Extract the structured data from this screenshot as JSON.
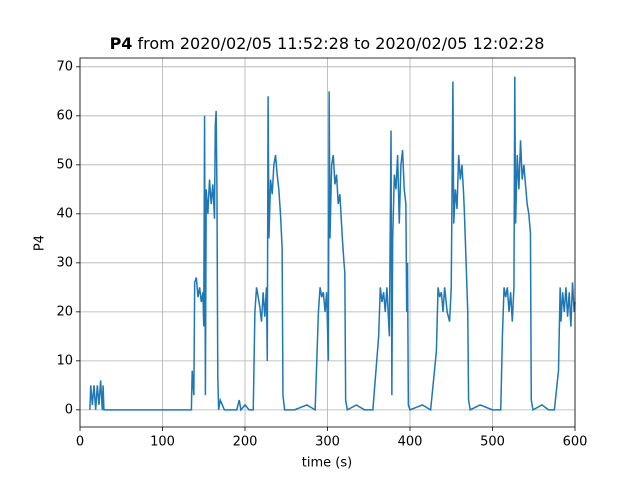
{
  "chart_data": {
    "type": "line",
    "title": {
      "bold": "P4",
      "rest": "from 2020/02/05 11:52:28 to 2020/02/05 12:02:28"
    },
    "x_label": "time (s)",
    "y_label": "P4",
    "xlim": [
      0,
      600
    ],
    "ylim": [
      -3.5,
      71.8
    ],
    "xticks": [
      0,
      100,
      200,
      300,
      400,
      500,
      600
    ],
    "yticks": [
      0,
      10,
      20,
      30,
      40,
      50,
      60,
      70
    ],
    "grid": true,
    "series": [
      {
        "color": "#1f77b4",
        "x": [
          12,
          13,
          15,
          17,
          19,
          21,
          23,
          25,
          27,
          28,
          29,
          135,
          136,
          138,
          139,
          141,
          143,
          145,
          147,
          149,
          150,
          151,
          152,
          153,
          155,
          157,
          159,
          161,
          163,
          164,
          165,
          166,
          167,
          168,
          170,
          175,
          190,
          193,
          195,
          200,
          205,
          210,
          212,
          214,
          216,
          218,
          220,
          222,
          224,
          226,
          227,
          228,
          229,
          231,
          233,
          235,
          237,
          239,
          241,
          243,
          245,
          246,
          248,
          260,
          275,
          285,
          289,
          291,
          293,
          295,
          297,
          299,
          301,
          302,
          303,
          305,
          307,
          309,
          311,
          313,
          315,
          318,
          320,
          321,
          322,
          324,
          335,
          345,
          355,
          362,
          364,
          366,
          368,
          370,
          372,
          375,
          377,
          378,
          379,
          381,
          383,
          385,
          387,
          389,
          391,
          393,
          395,
          396,
          397,
          398,
          400,
          415,
          425,
          432,
          434,
          436,
          438,
          440,
          442,
          445,
          448,
          450,
          452,
          453,
          455,
          457,
          459,
          461,
          463,
          465,
          466,
          468,
          470,
          471,
          473,
          485,
          500,
          510,
          512,
          514,
          516,
          518,
          520,
          522,
          524,
          526,
          527,
          528,
          530,
          532,
          534,
          536,
          538,
          540,
          542,
          544,
          546,
          547,
          549,
          560,
          568,
          575,
          580,
          582,
          583,
          585,
          587,
          589,
          591,
          593,
          595,
          597,
          599,
          600
        ],
        "values": [
          0,
          5,
          1,
          5,
          0,
          5,
          1,
          6,
          0,
          5,
          0,
          0,
          8,
          3,
          26,
          27,
          23,
          25,
          22,
          24,
          17,
          60,
          3,
          45,
          40,
          47,
          42,
          46,
          39,
          58,
          61,
          45,
          7,
          0,
          2,
          0,
          0,
          2,
          0,
          1,
          0,
          0,
          20,
          25,
          23,
          21,
          18,
          24,
          19,
          25,
          10,
          64,
          35,
          47,
          44,
          50,
          52,
          48,
          45,
          40,
          33,
          3,
          0,
          0,
          1,
          0,
          20,
          25,
          23,
          24,
          20,
          24,
          10,
          65,
          35,
          50,
          52,
          46,
          48,
          42,
          44,
          35,
          30,
          28,
          2,
          0,
          1,
          0,
          0,
          15,
          25,
          22,
          24,
          20,
          25,
          15,
          57,
          3,
          35,
          48,
          45,
          52,
          38,
          50,
          53,
          45,
          42,
          20,
          30,
          1,
          0,
          1,
          0,
          12,
          25,
          23,
          24,
          20,
          25,
          20,
          18,
          25,
          67,
          38,
          45,
          41,
          52,
          47,
          50,
          44,
          40,
          30,
          20,
          2,
          0,
          1,
          0,
          0,
          15,
          25,
          23,
          25,
          20,
          24,
          18,
          25,
          68,
          38,
          52,
          45,
          55,
          47,
          50,
          46,
          42,
          40,
          36,
          2,
          0,
          1,
          0,
          0,
          8,
          25,
          18,
          24,
          20,
          25,
          19,
          24,
          17,
          26,
          20,
          22
        ]
      }
    ]
  }
}
